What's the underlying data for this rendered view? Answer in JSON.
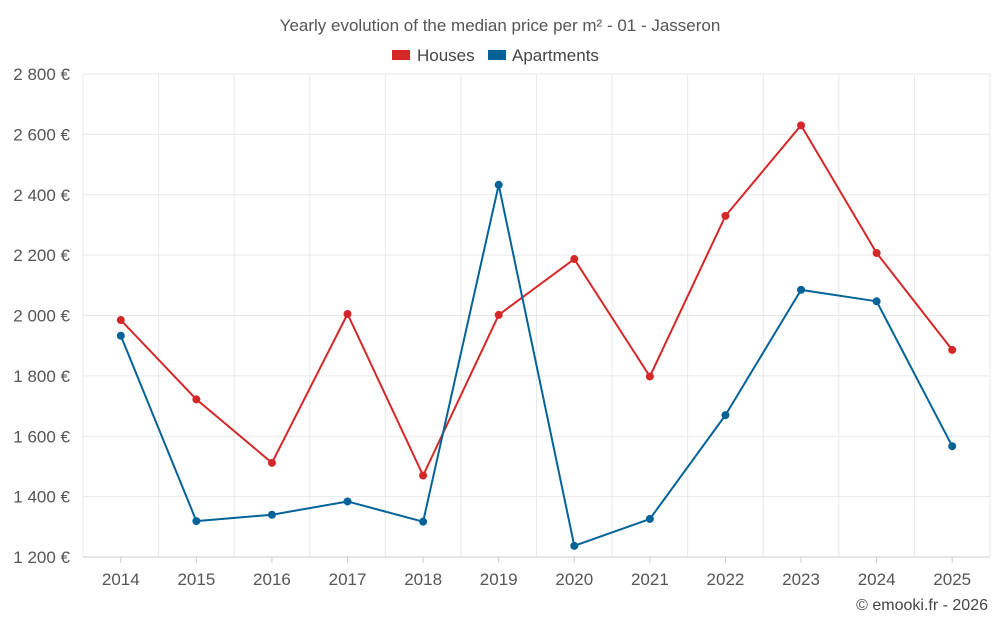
{
  "chart_data": {
    "type": "line",
    "title": "Yearly evolution of the median price per m² - 01 - Jasseron",
    "categories": [
      "2014",
      "2015",
      "2016",
      "2017",
      "2018",
      "2019",
      "2020",
      "2021",
      "2022",
      "2023",
      "2024",
      "2025"
    ],
    "series": [
      {
        "name": "Houses",
        "color": "#d62728",
        "values": [
          1985,
          1722,
          1512,
          2005,
          1470,
          2002,
          2187,
          1798,
          2330,
          2630,
          2207,
          1886
        ]
      },
      {
        "name": "Apartments",
        "color": "#036399",
        "values": [
          1933,
          1319,
          1340,
          1384,
          1317,
          2433,
          1237,
          1326,
          1670,
          2085,
          2047,
          1567
        ]
      }
    ],
    "ylim": [
      1200,
      2800
    ],
    "yticks": [
      1200,
      1400,
      1600,
      1800,
      2000,
      2200,
      2400,
      2600,
      2800
    ],
    "ytick_labels": [
      "1 200 €",
      "1 400 €",
      "1 600 €",
      "1 800 €",
      "2 000 €",
      "2 200 €",
      "2 400 €",
      "2 600 €",
      "2 800 €"
    ],
    "legend_position": "top-center",
    "grid": true
  },
  "credit": "© emooki.fr - 2026"
}
